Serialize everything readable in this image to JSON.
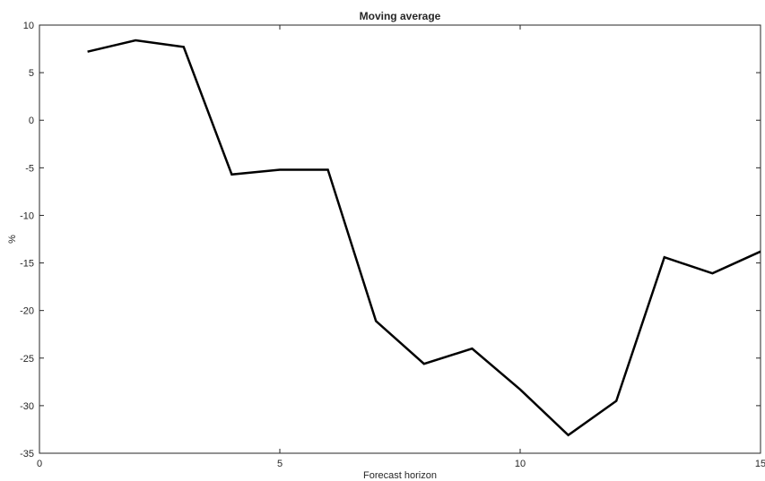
{
  "chart_data": {
    "type": "line",
    "title": "Moving average",
    "xlabel": "Forecast horizon",
    "ylabel": "%",
    "xlim": [
      0,
      15
    ],
    "ylim": [
      -35,
      10
    ],
    "xticks": [
      0,
      5,
      10,
      15
    ],
    "yticks": [
      10,
      5,
      0,
      -5,
      -10,
      -15,
      -20,
      -25,
      -30,
      -35
    ],
    "grid": false,
    "line_color": "#000000",
    "series": [
      {
        "x": [
          1,
          2,
          3,
          4,
          5,
          6,
          7,
          8,
          9,
          10,
          11,
          12,
          13,
          14,
          15
        ],
        "values": [
          7.2,
          8.4,
          7.7,
          -5.7,
          -5.2,
          -5.2,
          -21.1,
          -25.6,
          -24.0,
          -28.3,
          -33.1,
          -29.5,
          -14.4,
          -16.1,
          -13.8
        ]
      }
    ]
  }
}
